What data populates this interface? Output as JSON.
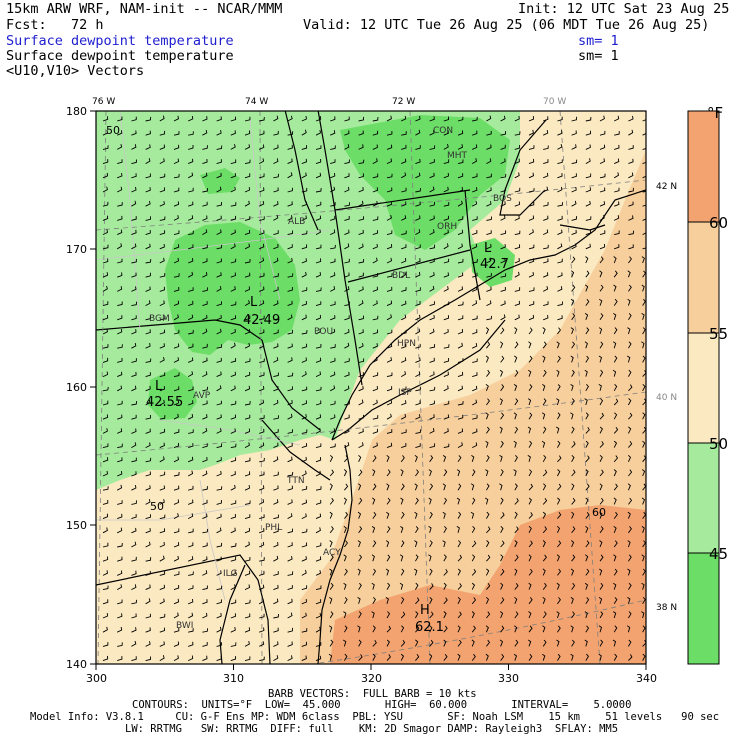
{
  "header": {
    "title": "15km ARW WRF, NAM-init -- NCAR/MMM",
    "init": "Init: 12 UTC Sat 23 Aug 25",
    "fcst": "Fcst:   72 h",
    "valid": "Valid: 12 UTC Tue 26 Aug 25 (06 MDT Tue 26 Aug 25)",
    "field_line1": "Surface dewpoint temperature",
    "sm1": "sm= 1",
    "field_line2": "Surface dewpoint temperature",
    "sm2": "sm= 1",
    "vectors": "<U10,V10> Vectors"
  },
  "map": {
    "x_ticks": [
      "300",
      "310",
      "320",
      "330",
      "340"
    ],
    "y_ticks": [
      "140",
      "150",
      "160",
      "170",
      "180"
    ],
    "lon_labels": [
      "76 W",
      "74 W",
      "72 W",
      "70 W"
    ],
    "lat_labels": [
      "42 N",
      "40 N",
      "38 N"
    ],
    "contour_labels": [
      "50",
      "50",
      "60"
    ],
    "lows": [
      {
        "symbol": "L",
        "value": "42.49"
      },
      {
        "symbol": "L",
        "value": "42.55"
      },
      {
        "symbol": "L",
        "value": "42.7"
      }
    ],
    "high": {
      "symbol": "H",
      "value": "62.1"
    },
    "stations": [
      "CON",
      "MHT",
      "BOS",
      "ALB",
      "ORH",
      "BDL",
      "BGM",
      "POU",
      "HPN",
      "AVP",
      "ISP",
      "TTN",
      "PHL",
      "ACY",
      "BWI",
      "ILG"
    ],
    "colors": {
      "ocean_warm": "#f2a36f",
      "light_orange": "#f7cf9c",
      "cream": "#fbe9c1",
      "light_green": "#a6eb9d",
      "green": "#6cdd67",
      "border": "#000000"
    }
  },
  "colorbar": {
    "unit": "°F",
    "labels": [
      "60",
      "55",
      "50",
      "45"
    ],
    "bins": [
      {
        "color": "#6cdd67"
      },
      {
        "color": "#a6eb9d"
      },
      {
        "color": "#fbe9c1"
      },
      {
        "color": "#f7cf9c"
      },
      {
        "color": "#f2a36f"
      }
    ]
  },
  "footer": {
    "barb": "BARB VECTORS:  FULL BARB = 10 kts",
    "contours": "CONTOURS:  UNITS=°F  LOW=  45.000       HIGH=  60.000       INTERVAL=    5.0000",
    "model1": "Model Info: V3.8.1     CU: G-F Ens MP: WDM 6class  PBL: YSU       SF: Noah LSM    15 km    51 levels   90 sec",
    "model2": "LW: RRTMG   SW: RRTMG  DIFF: full    KM: 2D Smagor DAMP: Rayleigh3  SFLAY: MM5"
  }
}
